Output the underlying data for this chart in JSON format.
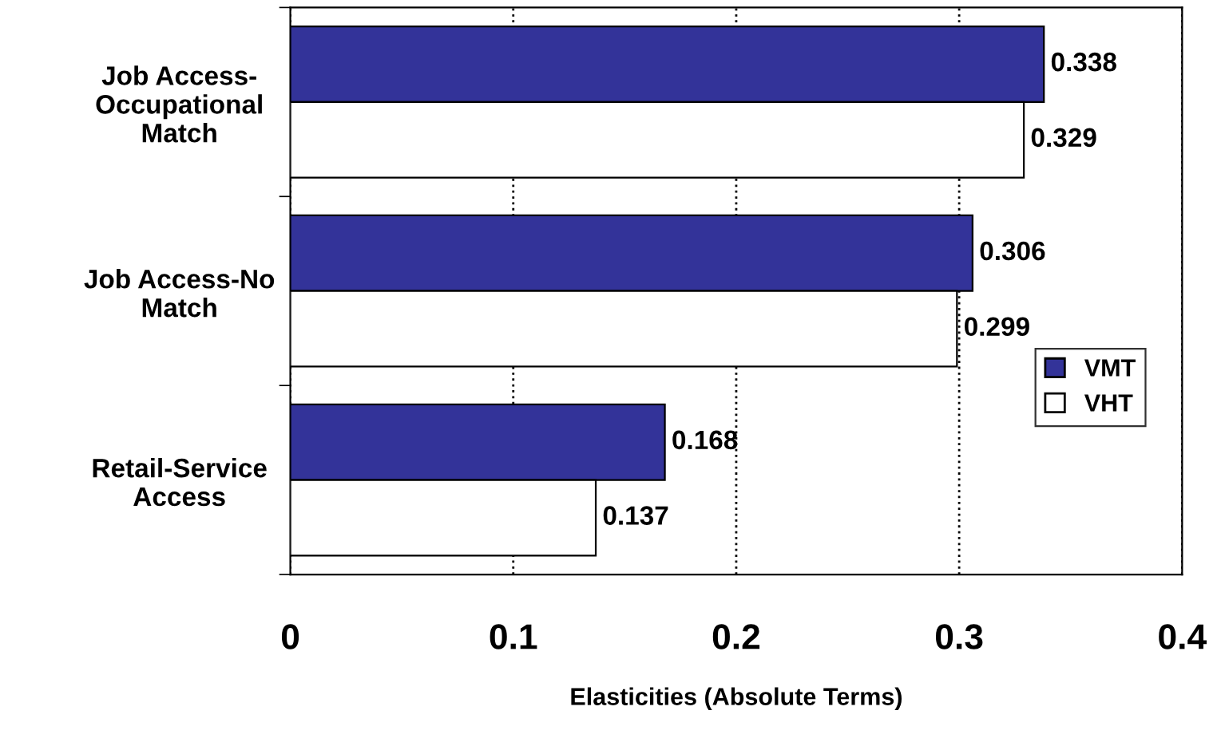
{
  "chart_data": {
    "type": "bar",
    "orientation": "horizontal",
    "xlabel": "Elasticities (Absolute Terms)",
    "categories": [
      "Job Access-\nOccupational\nMatch",
      "Job Access-No\nMatch",
      "Retail-Service\nAccess"
    ],
    "series": [
      {
        "name": "VMT",
        "color": "#333399",
        "values": [
          0.338,
          0.306,
          0.168
        ]
      },
      {
        "name": "VHT",
        "color": "#ffffff",
        "values": [
          0.329,
          0.299,
          0.137
        ]
      }
    ],
    "xlim": [
      0,
      0.4
    ],
    "xticks": [
      0,
      0.1,
      0.2,
      0.3,
      0.4
    ],
    "grid": "x",
    "legend": "center right",
    "data_labels": true
  }
}
